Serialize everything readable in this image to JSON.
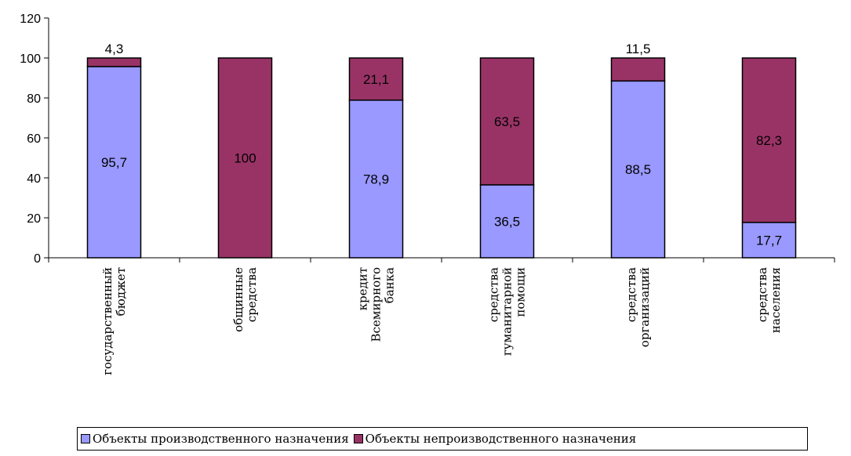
{
  "chart_data": {
    "type": "bar",
    "stacked": true,
    "categories": [
      [
        "государственный",
        "бюджет"
      ],
      [
        "общинные",
        "средства"
      ],
      [
        "кредит",
        "Всемирного",
        "банка"
      ],
      [
        "средства",
        "гуманитарной",
        "помощи"
      ],
      [
        "средства",
        "организаций"
      ],
      [
        "средства",
        "населения"
      ]
    ],
    "series": [
      {
        "name": "Объекты производственного назначения",
        "color": "#9999FF",
        "values": [
          95.7,
          0,
          78.9,
          36.5,
          88.5,
          17.7
        ],
        "labels": [
          "95,7",
          "",
          "78,9",
          "36,5",
          "88,5",
          "17,7"
        ]
      },
      {
        "name": "Объекты непроизводственного назначения",
        "color": "#993366",
        "values": [
          4.3,
          100,
          21.1,
          63.5,
          11.5,
          82.3
        ],
        "labels": [
          "4,3",
          "100",
          "21,1",
          "63,5",
          "11,5",
          "82,3"
        ]
      }
    ],
    "ylim": [
      0,
      120
    ],
    "yticks": [
      0,
      20,
      40,
      60,
      80,
      100,
      120
    ],
    "grid": false,
    "legend_position": "bottom"
  }
}
